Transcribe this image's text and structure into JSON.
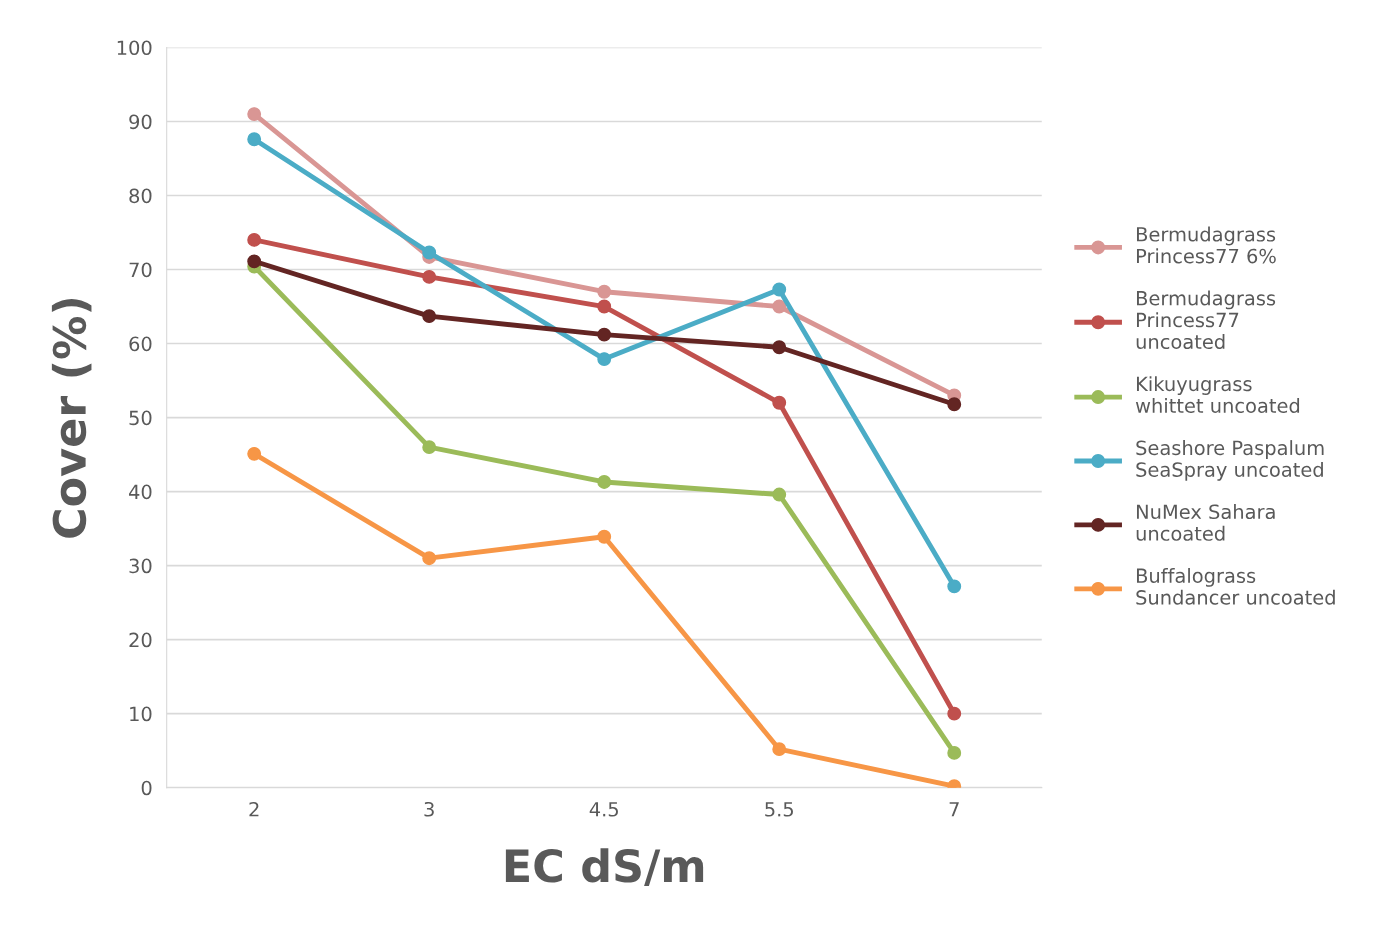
{
  "chart_data": {
    "type": "line",
    "xlabel": "EC dS/m",
    "ylabel": "Cover (%)",
    "categories": [
      "2",
      "3",
      "4.5",
      "5.5",
      "7"
    ],
    "series": [
      {
        "name": "Bermudagrass Princess77 6%",
        "color": "#d99694",
        "values": [
          91,
          71.7,
          67,
          65,
          53
        ]
      },
      {
        "name": "Bermudagrass Princess77 uncoated",
        "color": "#c0504d",
        "values": [
          74,
          69,
          65,
          52,
          10
        ]
      },
      {
        "name": "Kikuyugrass whittet uncoated",
        "color": "#9bbb59",
        "values": [
          70.4,
          46,
          41.3,
          39.6,
          4.7
        ]
      },
      {
        "name": "Seashore Paspalum SeaSpray uncoated",
        "color": "#4bacc6",
        "values": [
          87.6,
          72.3,
          57.9,
          67.3,
          27.2
        ]
      },
      {
        "name": "NuMex Sahara uncoated",
        "color": "#632523",
        "values": [
          71.1,
          63.7,
          61.2,
          59.5,
          51.8
        ]
      },
      {
        "name": "Buffalograss Sundancer uncoated",
        "color": "#f79646",
        "values": [
          45.1,
          31,
          33.9,
          5.2,
          0.2
        ]
      }
    ],
    "ylim": [
      0,
      100
    ],
    "yticks": [
      0,
      10,
      20,
      30,
      40,
      50,
      60,
      70,
      80,
      90,
      100
    ],
    "grid": "y",
    "legend": "right",
    "marker": "circle",
    "line_style": "solid"
  }
}
